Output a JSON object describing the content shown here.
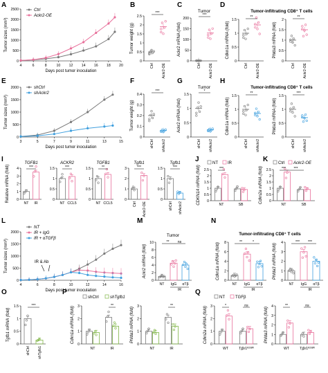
{
  "colors": {
    "ctrl": "#7a7a7a",
    "oe": "#e8709b",
    "sh": "#3f9fde",
    "alpha": "#3f9fde",
    "igg": "#e8709b",
    "shTgfb": "#7fb545",
    "tgfb": "#e8709b",
    "black": "#000000"
  },
  "text": {
    "panels": [
      "A",
      "B",
      "C",
      "D",
      "E",
      "F",
      "G",
      "H",
      "I",
      "J",
      "K",
      "L",
      "M",
      "N",
      "O",
      "P",
      "Q"
    ],
    "tumor_sizes_mm3": "Tumor sizes (mm³)",
    "days_post": "Days post tumor inoculation",
    "tumor_weight": "Tumor weight (g)",
    "tumor": "Tumor",
    "til_cd8": "Tumor-infiltrating CD8⁺ T cells",
    "ackr2_mrna": "Ackr2 mRNA (fold)",
    "cdkn1a_mrna": "Cdkn1a mRNA (fold)",
    "phlda3_mrna": "Phlda3 mRNA (fold)",
    "cdkn2a_mrna": "Cdkn2a mRNA (fold)",
    "tgfb1_mrna": "Tgfb1 mRNA (fold)",
    "relative_mrna": "Relative mRNA (fold)",
    "cdkn1a_caps": "CDKN1A mRNA (fold)",
    "cdkn2a_k": "Cdkn2a mRNA (fold)",
    "legend_ctrl": "Ctrl",
    "legend_oe": "Ackr2-OE",
    "legend_shctrl": "shCtrl",
    "legend_shackr2": "shAckr2",
    "legend_nt": "NT",
    "legend_ir": "IR",
    "legend_ir_igg": "IR + IgG",
    "legend_ir_atgfb": "IR + αTGFβ",
    "legend_shtgfb1": "shTgfb1",
    "legend_tgfb": "TGFβ",
    "ir_ab": "IR & Ab",
    "sig3": "***",
    "sig2": "**",
    "sig1": "*",
    "ns": "ns",
    "ctrl": "Ctrl",
    "ackr2oe": "Ackr2-OE",
    "shctrl": "shCtrl",
    "shackr2": "shAckr2",
    "shtgfb1": "shTgfb1",
    "nt": "NT",
    "ir": "IR",
    "ccl5": "CCL5",
    "sb": "SB",
    "igg": "IgG",
    "atb": "αTβ",
    "wt": "WT",
    "tjr1": "Tjβr1ᴷ²³²ᴿ",
    "i_tgfb1": "TGFB1",
    "i_ackr2": "ACKR2",
    "i_tgfb1b": "TGFB1",
    "i_tgfb1m": "Tgfb1",
    "i_tgfb1m2": "Tgfb1"
  },
  "chart_data": [
    {
      "id": "A",
      "type": "line",
      "xlabel": "Days post tumor inoculation",
      "ylabel": "Tumor sizes (mm³)",
      "x": [
        4,
        6,
        8,
        10,
        12,
        14,
        16,
        18,
        19
      ],
      "ylim": [
        0,
        2500
      ],
      "yticks": [
        0,
        500,
        1000,
        1500,
        2000,
        2500
      ],
      "xticks": [
        4,
        6,
        8,
        10,
        12,
        14,
        16,
        18,
        20
      ],
      "series": [
        {
          "name": "Ctrl",
          "values": [
            20,
            50,
            100,
            180,
            320,
            500,
            700,
            1050,
            1400
          ]
        },
        {
          "name": "Ackr2-OE",
          "values": [
            20,
            60,
            150,
            330,
            600,
            900,
            1350,
            1800,
            2100
          ]
        }
      ]
    },
    {
      "id": "B",
      "type": "scatter",
      "ylabel": "Tumor weight (g)",
      "ylim": [
        0,
        2.5
      ],
      "categories": [
        "Ctrl",
        "Ackr2-OE"
      ],
      "values": [
        0.5,
        1.9
      ],
      "sig": "***"
    },
    {
      "id": "C",
      "type": "scatter",
      "title": "Tumor",
      "ylabel": "Ackr2 mRNA (fold)",
      "ylim": [
        0,
        200
      ],
      "categories": [
        "Ctrl",
        "Ackr2-OE"
      ],
      "values": [
        1,
        130
      ],
      "sig": "***"
    },
    {
      "id": "D",
      "type": "scatter",
      "title": "Tumor-infiltrating CD8⁺ T cells",
      "ylabel": "Cdkn1a mRNA (fold) / Phlda3 mRNA (fold)",
      "categories": [
        "Ctrl",
        "Ackr2-OE"
      ],
      "series": [
        {
          "name": "Cdkn1a",
          "values": [
            1,
            1.3
          ],
          "ylim": [
            0,
            1.5
          ],
          "sig": "**"
        },
        {
          "name": "Phlda3",
          "values": [
            1,
            1.5
          ],
          "ylim": [
            0,
            2
          ],
          "sig": "**"
        }
      ]
    },
    {
      "id": "E",
      "type": "line",
      "xlabel": "Days post tumor inoculation",
      "ylabel": "Tumor sizes (mm³)",
      "x": [
        3,
        5,
        7,
        9,
        11,
        13,
        14
      ],
      "ylim": [
        0,
        2000
      ],
      "yticks": [
        0,
        500,
        1000,
        1500,
        2000
      ],
      "xticks": [
        3,
        5,
        7,
        9,
        11,
        13,
        15
      ],
      "series": [
        {
          "name": "shCtrl",
          "values": [
            20,
            80,
            250,
            600,
            1000,
            1500,
            1700
          ]
        },
        {
          "name": "shAckr2",
          "values": [
            20,
            50,
            120,
            250,
            350,
            420,
            460
          ]
        }
      ]
    },
    {
      "id": "F",
      "type": "scatter",
      "ylabel": "Tumor weight (g)",
      "ylim": [
        0,
        0.4
      ],
      "categories": [
        "shCtrl",
        "shAckr2"
      ],
      "values": [
        0.2,
        0.06
      ],
      "sig": "***"
    },
    {
      "id": "G",
      "type": "scatter",
      "title": "Tumor",
      "ylabel": "Ackr2 mRNA (fold)",
      "ylim": [
        0,
        1.5
      ],
      "categories": [
        "shCtrl",
        "shAckr2"
      ],
      "values": [
        1,
        0.25
      ],
      "sig": "*"
    },
    {
      "id": "H",
      "type": "scatter",
      "title": "Tumor-infiltrating CD8⁺ T cells",
      "categories": [
        "shCtrl",
        "shAckr2"
      ],
      "series": [
        {
          "name": "Cdkn1a",
          "values": [
            1,
            0.85
          ],
          "ylim": [
            0,
            1.5
          ],
          "sig": "**"
        },
        {
          "name": "Phlda3",
          "values": [
            1,
            0.7
          ],
          "ylim": [
            0,
            1.5
          ],
          "sig": "***"
        }
      ]
    },
    {
      "id": "I",
      "type": "bar",
      "ylabel": "Relative mRNA (fold)",
      "groups": [
        {
          "gene": "TGFB1",
          "categories": [
            "NT",
            "IR"
          ],
          "values": [
            1,
            3.5
          ],
          "sig": "***"
        },
        {
          "gene": "ACKR2",
          "categories": [
            "NT",
            "CCL5"
          ],
          "values": [
            1,
            1.1
          ],
          "sig": "***"
        },
        {
          "gene": "TGFB1",
          "categories": [
            "NT",
            "CCL5"
          ],
          "values": [
            1,
            1.2
          ],
          "sig": "**"
        },
        {
          "gene": "Tgfb1",
          "categories": [
            "Ctrl",
            "Ackr2-OE"
          ],
          "values": [
            1,
            2.3
          ],
          "sig": "***"
        },
        {
          "gene": "Tgfb1",
          "categories": [
            "shCtrl",
            "shAckr2"
          ],
          "values": [
            1,
            0.3
          ],
          "sig": "***"
        }
      ]
    },
    {
      "id": "J",
      "type": "bar",
      "ylabel": "CDKN1A mRNA (fold)",
      "ylim": [
        0,
        2.5
      ],
      "categories": [
        "NT",
        "SB"
      ],
      "series": [
        {
          "name": "NT",
          "values": [
            1,
            0.95
          ]
        },
        {
          "name": "IR",
          "values": [
            2.1,
            0.9
          ]
        }
      ],
      "sig": "***"
    },
    {
      "id": "K",
      "type": "bar",
      "ylabel": "Cdkn2a mRNA (fold)",
      "ylim": [
        0,
        2.5
      ],
      "categories": [
        "NT",
        "SB"
      ],
      "series": [
        {
          "name": "Ctrl",
          "values": [
            1,
            0.9
          ]
        },
        {
          "name": "Ackr2-OE",
          "values": [
            2.3,
            0.9
          ]
        }
      ],
      "sig": [
        "***",
        "***"
      ]
    },
    {
      "id": "L",
      "type": "line",
      "xlabel": "Days post tumor inoculation",
      "ylabel": "Tumor sizes (mm³)",
      "x": [
        4,
        5,
        6,
        7,
        8,
        9,
        10,
        11,
        12,
        13,
        14,
        15,
        16
      ],
      "ylim": [
        0,
        2000
      ],
      "yticks": [
        0,
        500,
        1000,
        1500,
        2000
      ],
      "xticks": [
        4,
        6,
        8,
        10,
        12,
        14,
        16
      ],
      "series": [
        {
          "name": "NT",
          "values": [
            10,
            20,
            40,
            80,
            140,
            220,
            330,
            480,
            650,
            850,
            1100,
            1300,
            1450
          ]
        },
        {
          "name": "IR + IgG",
          "values": [
            10,
            20,
            40,
            80,
            140,
            220,
            330,
            420,
            400,
            350,
            320,
            300,
            280
          ]
        },
        {
          "name": "IR + αTGFβ",
          "values": [
            10,
            20,
            40,
            80,
            140,
            220,
            330,
            300,
            220,
            180,
            150,
            120,
            100
          ]
        }
      ],
      "annotation": "IR & Ab"
    },
    {
      "id": "M",
      "type": "bar",
      "title": "Tumor",
      "ylabel": "Ackr2 mRNA (fold)",
      "ylim": [
        0,
        10
      ],
      "categories": [
        "NT",
        "IgG",
        "αTβ"
      ],
      "values": [
        1,
        4.5,
        4
      ],
      "sig": [
        "**",
        "ns"
      ]
    },
    {
      "id": "N",
      "type": "bar",
      "title": "Tumor-infiltrating CD8⁺ T cells",
      "categories": [
        "NT",
        "IgG",
        "αTβ"
      ],
      "series": [
        {
          "name": "Cdkn1a",
          "values": [
            1,
            5.5,
            3.5
          ],
          "ylim": [
            0,
            8
          ],
          "sig": [
            "**",
            "*"
          ]
        },
        {
          "name": "Phlda3",
          "values": [
            1,
            3,
            2
          ],
          "ylim": [
            0,
            4
          ],
          "sig": [
            "***",
            "***"
          ]
        }
      ]
    },
    {
      "id": "O",
      "type": "bar",
      "ylabel": "Tgfb1 mRNA (fold)",
      "ylim": [
        0,
        1.5
      ],
      "categories": [
        "shCtrl",
        "shTgfb1"
      ],
      "values": [
        1,
        0.15
      ],
      "sig": "***"
    },
    {
      "id": "P",
      "type": "bar",
      "categories": [
        "NT",
        "IR"
      ],
      "series": [
        {
          "name": "shCtrl",
          "values": [
            1,
            2.1
          ]
        },
        {
          "name": "shTgfb1",
          "values": [
            0.9,
            1.4
          ]
        }
      ],
      "panels": [
        {
          "gene": "Cdkn1a",
          "ylim": [
            0,
            3
          ],
          "sig": "**"
        },
        {
          "gene": "Phlda3",
          "ylim": [
            0,
            3
          ],
          "sig": "**"
        }
      ]
    },
    {
      "id": "Q",
      "type": "bar",
      "categories": [
        "WT",
        "Tjβr1ᴷ²³²ᴿ"
      ],
      "series": [
        {
          "name": "NT",
          "values": [
            1,
            1
          ]
        },
        {
          "name": "TGFβ",
          "values": [
            2.2,
            1.2
          ]
        }
      ],
      "panels": [
        {
          "gene": "Cdkn2a",
          "ylim": [
            0,
            3
          ],
          "sig": [
            "*",
            "ns"
          ]
        },
        {
          "gene": "Phlda3",
          "ylim": [
            0,
            4
          ],
          "sig": [
            "**",
            "ns"
          ]
        }
      ]
    }
  ]
}
